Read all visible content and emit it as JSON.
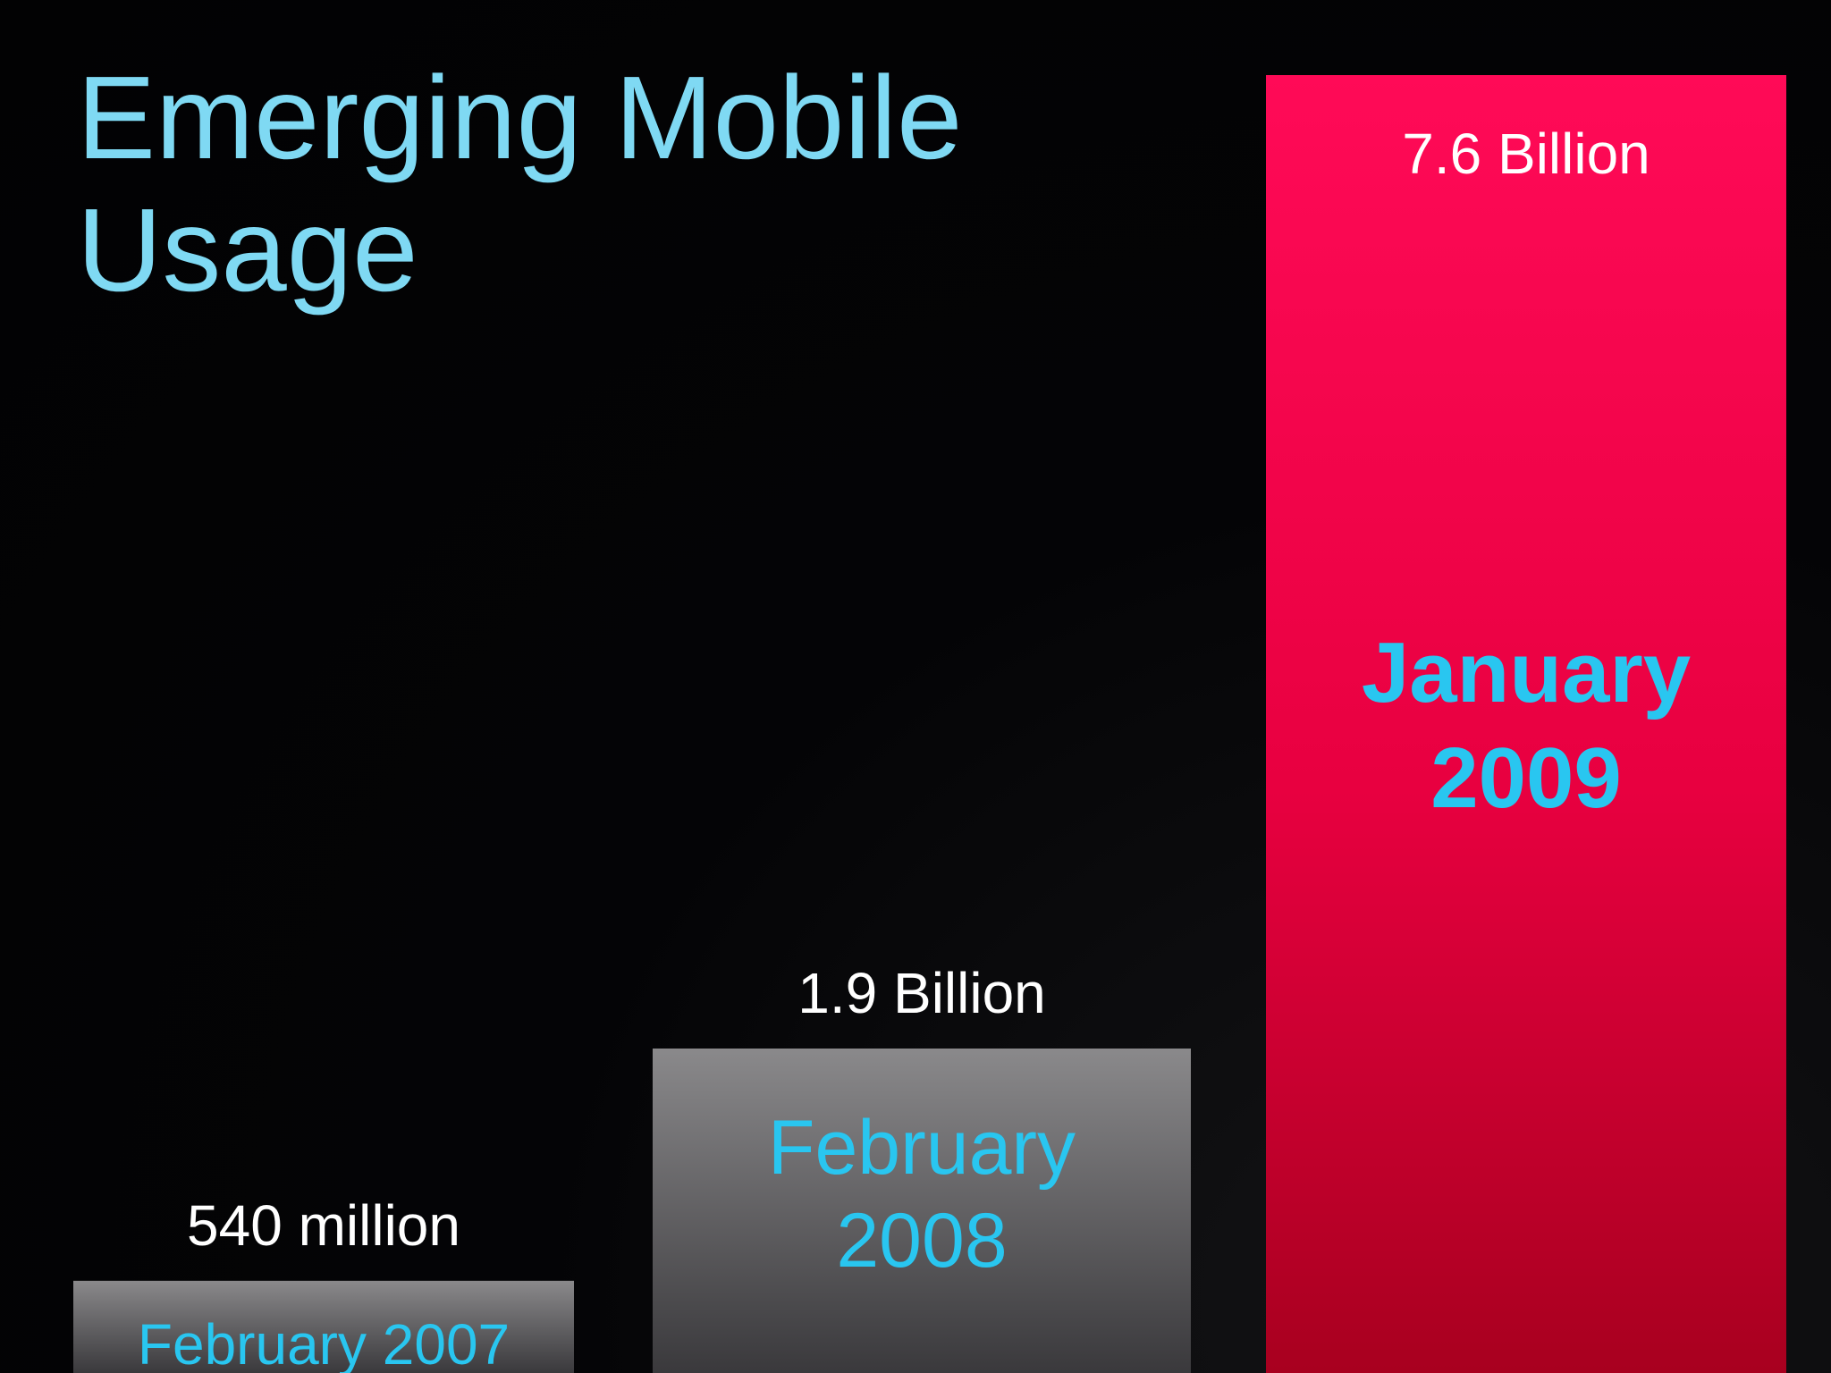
{
  "slide": {
    "title": "Emerging Mobile\nUsage"
  },
  "colors": {
    "background": "#030305",
    "title": "#7fd9f3",
    "category_text": "#29c6f0",
    "value_text": "#ffffff",
    "bar_gray_top": "#8a898b",
    "bar_gray_bottom": "#3a393c",
    "bar_red_top": "#ff0a57",
    "bar_red_bottom": "#a8001f"
  },
  "chart_data": {
    "type": "bar",
    "title": "Emerging Mobile Usage",
    "xlabel": "",
    "ylabel": "",
    "grid": false,
    "legend": "none",
    "categories": [
      "February 2007",
      "February 2008",
      "January 2009"
    ],
    "category_lines": [
      [
        "February 2007"
      ],
      [
        "February",
        "2008"
      ],
      [
        "January",
        "2009"
      ]
    ],
    "values": [
      0.54,
      1.9,
      7.6
    ],
    "value_labels": [
      "540 million",
      "1.9 Billion",
      "7.6 Billion"
    ],
    "unit": "billion",
    "ylim": [
      0,
      7.6
    ],
    "highlight": "January 2009"
  }
}
